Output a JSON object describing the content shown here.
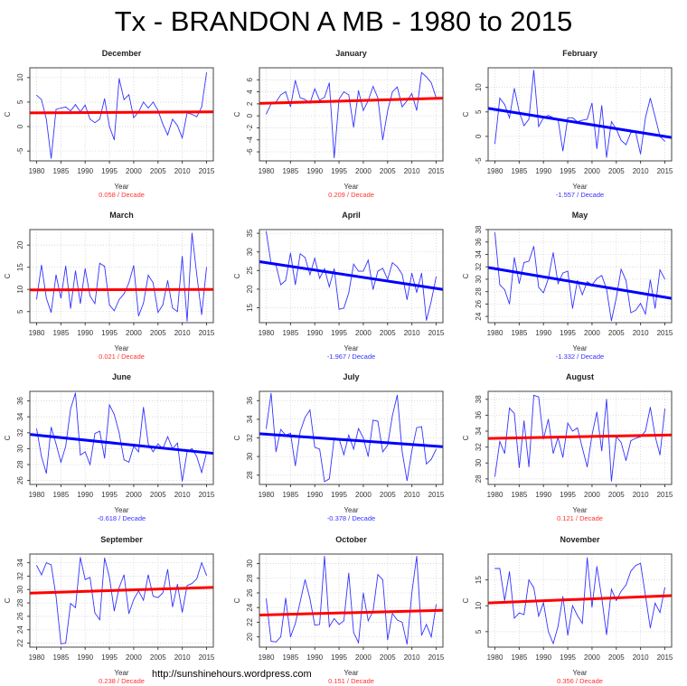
{
  "title": "Tx - BRANDON A MB - 1980 to 2015",
  "watermark": "http://sunshinehours.wordpress.com",
  "colors": {
    "series": "#3333ff",
    "trend_up": "#ff0000",
    "trend_down": "#0000ff",
    "text_up": "#ff3333",
    "text_down": "#3333ff",
    "grid": "#d3d3d3"
  },
  "chart_data": [
    {
      "type": "line",
      "title": "December",
      "xlabel": "Year",
      "ylabel": "C",
      "trend_label": "0.058  / Decade",
      "trend_direction": "up",
      "xlim": [
        1978.6,
        2016.4
      ],
      "ylim": [
        -7,
        12
      ],
      "xticks": [
        1980,
        1985,
        1990,
        1995,
        2000,
        2005,
        2010,
        2015
      ],
      "yticks": [
        -5,
        0,
        5,
        10
      ],
      "trend": [
        2.8,
        3.0
      ],
      "grid": true,
      "values": [
        6.4,
        5.5,
        1.5,
        -6.5,
        3.5,
        3.8,
        4,
        3.2,
        4.5,
        3,
        4.4,
        1.5,
        0.8,
        1.5,
        5.7,
        0,
        -2.7,
        9.8,
        5.5,
        6.5,
        1.8,
        3,
        5,
        3.8,
        5,
        3.3,
        0.5,
        -1.7,
        1.5,
        0.2,
        -2.3,
        2.8,
        2.5,
        2,
        4,
        11
      ]
    },
    {
      "type": "line",
      "title": "January",
      "xlabel": "Year",
      "ylabel": "C",
      "trend_label": "0.209  / Decade",
      "trend_direction": "up",
      "xlim": [
        1978.6,
        2016.4
      ],
      "ylim": [
        -7.5,
        8
      ],
      "xticks": [
        1980,
        1985,
        1990,
        1995,
        2000,
        2005,
        2010,
        2015
      ],
      "yticks": [
        -6,
        -4,
        -2,
        0,
        2,
        4,
        6
      ],
      "trend": [
        2.1,
        2.9
      ],
      "grid": true,
      "values": [
        0.3,
        2,
        2.3,
        3.5,
        4,
        1.5,
        5.9,
        3,
        2.7,
        2.1,
        4.5,
        2.6,
        3.1,
        5.5,
        -7,
        2.8,
        4,
        3.5,
        -1.9,
        4.2,
        0.9,
        2.5,
        4.9,
        3,
        -4,
        0.8,
        4,
        4.8,
        1.5,
        2.5,
        3.7,
        0.9,
        7.2,
        6.5,
        5.5,
        3
      ]
    },
    {
      "type": "line",
      "title": "February",
      "xlabel": "Year",
      "ylabel": "C",
      "trend_label": "-1.557  / Decade",
      "trend_direction": "down",
      "xlim": [
        1978.6,
        2016.4
      ],
      "ylim": [
        -5,
        14
      ],
      "xticks": [
        1980,
        1985,
        1990,
        1995,
        2000,
        2005,
        2010,
        2015
      ],
      "yticks": [
        -5,
        0,
        5,
        10
      ],
      "trend": [
        5.5,
        0
      ],
      "grid": true,
      "values": [
        -1.5,
        7.8,
        6.5,
        3.8,
        9.8,
        5,
        2.2,
        3.5,
        13.5,
        2,
        3.8,
        4.3,
        3.8,
        3.5,
        -3,
        3.8,
        3.8,
        3,
        3.3,
        3.5,
        6.8,
        -2.5,
        6.3,
        -4.3,
        3,
        1.5,
        -0.8,
        -1.7,
        0.8,
        0.8,
        -3.6,
        3.8,
        7.8,
        4,
        0,
        -1
      ]
    },
    {
      "type": "line",
      "title": "March",
      "xlabel": "Year",
      "ylabel": "C",
      "trend_label": "0.021  / Decade",
      "trend_direction": "up",
      "xlim": [
        1978.6,
        2016.4
      ],
      "ylim": [
        2.5,
        23.5
      ],
      "xticks": [
        1980,
        1985,
        1990,
        1995,
        2000,
        2005,
        2010,
        2015
      ],
      "yticks": [
        5,
        10,
        15,
        20
      ],
      "trend": [
        9.9,
        10.0
      ],
      "grid": true,
      "values": [
        7.8,
        15.5,
        8,
        4.8,
        13.3,
        8,
        15.3,
        5.7,
        14.2,
        6.8,
        14.7,
        8.5,
        6.8,
        15.9,
        15.2,
        6.5,
        5.2,
        7.7,
        9,
        11.5,
        15.4,
        4,
        6.9,
        13.2,
        11.5,
        4.8,
        6.5,
        12,
        5.8,
        5,
        17.5,
        2.8,
        22.7,
        13.3,
        4.3,
        15
      ]
    },
    {
      "type": "line",
      "title": "April",
      "xlabel": "Year",
      "ylabel": "C",
      "trend_label": "-1.967  / Decade",
      "trend_direction": "down",
      "xlim": [
        1978.6,
        2016.4
      ],
      "ylim": [
        11,
        36
      ],
      "xticks": [
        1980,
        1985,
        1990,
        1995,
        2000,
        2005,
        2010,
        2015
      ],
      "yticks": [
        15,
        20,
        25,
        30,
        35
      ],
      "trend": [
        27.1,
        20.2
      ],
      "grid": true,
      "values": [
        35.5,
        26.8,
        26.5,
        21.2,
        22.3,
        29.7,
        21.2,
        29.5,
        28.5,
        23.9,
        28.3,
        22.9,
        25.5,
        20.6,
        25.5,
        14.6,
        14.9,
        19,
        26.7,
        24.8,
        24.8,
        27.8,
        19.9,
        24.8,
        25.6,
        22.6,
        27.1,
        26,
        24,
        17.2,
        24.3,
        19.1,
        24.3,
        11.6,
        16.8,
        23.3
      ]
    },
    {
      "type": "line",
      "title": "May",
      "xlabel": "Year",
      "ylabel": "C",
      "trend_label": "-1.332  / Decade",
      "trend_direction": "down",
      "xlim": [
        1978.6,
        2016.4
      ],
      "ylim": [
        23,
        38
      ],
      "xticks": [
        1980,
        1985,
        1990,
        1995,
        2000,
        2005,
        2010,
        2015
      ],
      "yticks": [
        24,
        26,
        28,
        30,
        32,
        34,
        36,
        38
      ],
      "trend": [
        31.7,
        27.1
      ],
      "grid": true,
      "values": [
        37.5,
        29.1,
        28.3,
        26,
        33.5,
        29.3,
        32.7,
        32.9,
        35.3,
        28.7,
        27.8,
        30.1,
        34.3,
        29.3,
        31,
        31.3,
        25.3,
        29.8,
        27.5,
        29.6,
        29.1,
        30.1,
        30.6,
        28.4,
        23.3,
        27,
        31.6,
        29.8,
        24.6,
        25,
        26.1,
        24.4,
        29.9,
        25.3,
        31.5,
        30
      ]
    },
    {
      "type": "line",
      "title": "June",
      "xlabel": "Year",
      "ylabel": "C",
      "trend_label": "-0.618  / Decade",
      "trend_direction": "down",
      "xlim": [
        1978.6,
        2016.4
      ],
      "ylim": [
        25.5,
        37.2
      ],
      "xticks": [
        1980,
        1985,
        1990,
        1995,
        2000,
        2005,
        2010,
        2015
      ],
      "yticks": [
        26,
        28,
        30,
        32,
        34,
        36
      ],
      "trend": [
        31.7,
        29.5
      ],
      "grid": true,
      "values": [
        32.5,
        29,
        26.9,
        32.7,
        30.6,
        28.3,
        30.3,
        35,
        37,
        29.2,
        29.6,
        28,
        31.9,
        32.2,
        28.8,
        35.5,
        34.3,
        32,
        28.6,
        28.3,
        30.3,
        29.6,
        35.2,
        30.6,
        29.6,
        30.6,
        30,
        31.5,
        30,
        30.7,
        25.9,
        29.6,
        30,
        29,
        27,
        29.5
      ]
    },
    {
      "type": "line",
      "title": "July",
      "xlabel": "Year",
      "ylabel": "C",
      "trend_label": "-0.378  / Decade",
      "trend_direction": "down",
      "xlim": [
        1978.6,
        2016.4
      ],
      "ylim": [
        27,
        37
      ],
      "xticks": [
        1980,
        1985,
        1990,
        1995,
        2000,
        2005,
        2010,
        2015
      ],
      "yticks": [
        28,
        30,
        32,
        34,
        36
      ],
      "trend": [
        32.4,
        31.1
      ],
      "grid": true,
      "values": [
        33,
        36.8,
        30.5,
        32.9,
        32.3,
        32.5,
        29,
        32.7,
        34.2,
        35,
        31,
        30.8,
        27.3,
        27.6,
        32,
        31.9,
        30.2,
        32.3,
        30.8,
        33,
        32,
        30,
        33.9,
        33.8,
        30.5,
        31.2,
        34.4,
        36.6,
        30.5,
        27.4,
        30.6,
        33.1,
        33.2,
        29.2,
        29.7,
        30.8
      ]
    },
    {
      "type": "line",
      "title": "August",
      "xlabel": "Year",
      "ylabel": "C",
      "trend_label": "0.121  / Decade",
      "trend_direction": "up",
      "xlim": [
        1978.6,
        2016.4
      ],
      "ylim": [
        27.3,
        39
      ],
      "xticks": [
        1980,
        1985,
        1990,
        1995,
        2000,
        2005,
        2010,
        2015
      ],
      "yticks": [
        28,
        30,
        32,
        34,
        36,
        38
      ],
      "trend": [
        33.1,
        33.5
      ],
      "grid": true,
      "values": [
        28.3,
        32.7,
        31.2,
        36.9,
        36.2,
        29.4,
        35.3,
        29.5,
        38.5,
        38.3,
        33,
        35.5,
        31.2,
        33.2,
        30.7,
        35,
        34,
        34.4,
        31.9,
        29.5,
        33.5,
        36.4,
        31.5,
        38,
        27.7,
        33.3,
        32.6,
        30.3,
        32.8,
        33.1,
        33.3,
        34,
        37,
        33.4,
        31,
        36.8
      ]
    },
    {
      "type": "line",
      "title": "September",
      "xlabel": "Year",
      "ylabel": "C",
      "trend_label": "0.238  / Decade",
      "trend_direction": "up",
      "xlim": [
        1978.6,
        2016.4
      ],
      "ylim": [
        21.4,
        35.3
      ],
      "xticks": [
        1980,
        1985,
        1990,
        1995,
        2000,
        2005,
        2010,
        2015
      ],
      "yticks": [
        22,
        24,
        26,
        28,
        30,
        32,
        34
      ],
      "trend": [
        29.5,
        30.3
      ],
      "grid": true,
      "values": [
        33.6,
        32.2,
        34,
        33.7,
        29,
        21.9,
        22,
        27.9,
        27.3,
        34.8,
        31.5,
        31.8,
        26.5,
        25.5,
        34.7,
        31.8,
        26.8,
        30.3,
        32.2,
        26.4,
        28.5,
        29.8,
        28.4,
        32.2,
        29,
        28.8,
        29.5,
        33,
        27.4,
        30.8,
        26.6,
        30.6,
        30.9,
        31.6,
        34,
        32.1
      ]
    },
    {
      "type": "line",
      "title": "October",
      "xlabel": "Year",
      "ylabel": "C",
      "trend_label": "0.151  / Decade",
      "trend_direction": "up",
      "xlim": [
        1978.6,
        2016.4
      ],
      "ylim": [
        18.6,
        31.3
      ],
      "xticks": [
        1980,
        1985,
        1990,
        1995,
        2000,
        2005,
        2010,
        2015
      ],
      "yticks": [
        20,
        22,
        24,
        26,
        28,
        30
      ],
      "trend": [
        23.0,
        23.6
      ],
      "grid": true,
      "values": [
        25.2,
        19.4,
        19.3,
        20,
        25.3,
        20,
        21.8,
        24.8,
        27.8,
        25.2,
        21.6,
        21.7,
        31,
        21.4,
        22.5,
        21.7,
        22.2,
        28.7,
        20.6,
        19.2,
        26,
        22.2,
        23.5,
        28.5,
        27.8,
        19.6,
        23.2,
        22.3,
        22,
        19,
        26,
        31,
        20.2,
        21.7,
        20,
        24.4
      ]
    },
    {
      "type": "line",
      "title": "November",
      "xlabel": "Year",
      "ylabel": "C",
      "trend_label": "0.356  / Decade",
      "trend_direction": "up",
      "xlim": [
        1978.6,
        2016.4
      ],
      "ylim": [
        2,
        20
      ],
      "xticks": [
        1980,
        1985,
        1990,
        1995,
        2000,
        2005,
        2010,
        2015
      ],
      "yticks": [
        5,
        10,
        15
      ],
      "trend": [
        10.6,
        11.9
      ],
      "grid": true,
      "values": [
        17.2,
        17.2,
        11,
        16.6,
        7.6,
        8.6,
        8.3,
        15,
        13.5,
        8,
        10.6,
        5,
        2.7,
        6,
        11.8,
        4.3,
        10,
        8.1,
        6.6,
        19.3,
        9.7,
        17.6,
        11.5,
        4.4,
        13.2,
        11,
        12.8,
        14,
        16.7,
        17.8,
        18.2,
        12,
        5.7,
        10.5,
        8.7,
        13.5
      ]
    }
  ]
}
